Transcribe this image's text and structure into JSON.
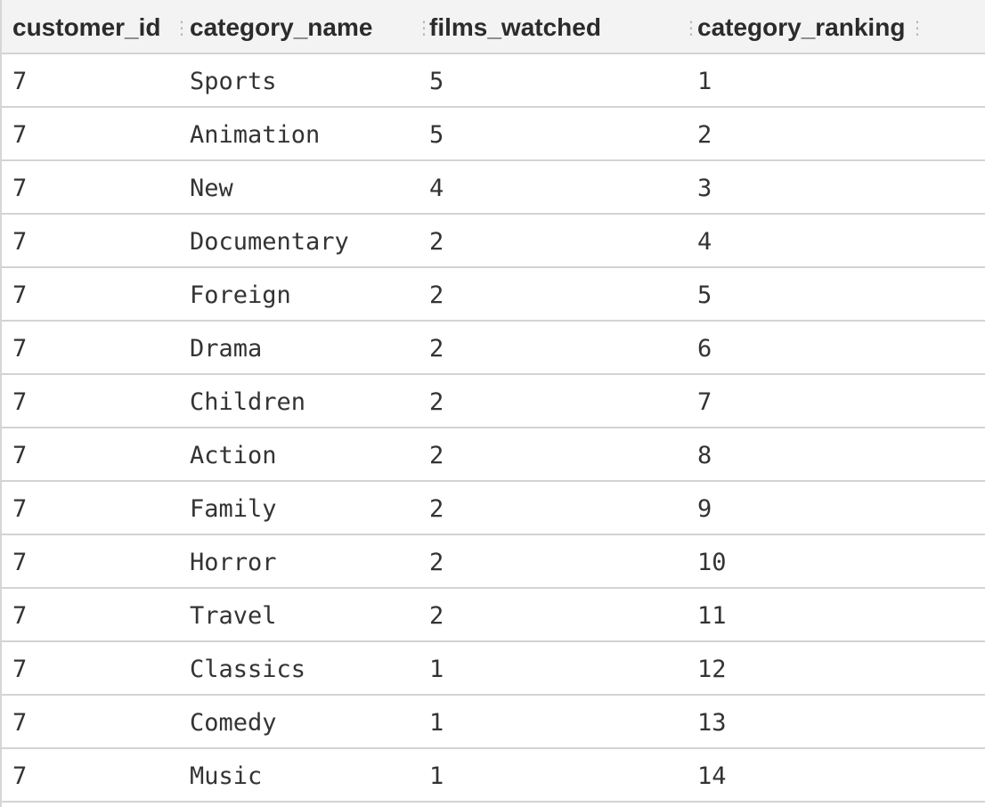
{
  "table": {
    "columns": [
      {
        "label": "customer_id"
      },
      {
        "label": "category_name"
      },
      {
        "label": "films_watched"
      },
      {
        "label": "category_ranking"
      }
    ],
    "rows": [
      [
        "7",
        "Sports",
        "5",
        "1"
      ],
      [
        "7",
        "Animation",
        "5",
        "2"
      ],
      [
        "7",
        "New",
        "4",
        "3"
      ],
      [
        "7",
        "Documentary",
        "2",
        "4"
      ],
      [
        "7",
        "Foreign",
        "2",
        "5"
      ],
      [
        "7",
        "Drama",
        "2",
        "6"
      ],
      [
        "7",
        "Children",
        "2",
        "7"
      ],
      [
        "7",
        "Action",
        "2",
        "8"
      ],
      [
        "7",
        "Family",
        "2",
        "9"
      ],
      [
        "7",
        "Horror",
        "2",
        "10"
      ],
      [
        "7",
        "Travel",
        "2",
        "11"
      ],
      [
        "7",
        "Classics",
        "1",
        "12"
      ],
      [
        "7",
        "Comedy",
        "1",
        "13"
      ],
      [
        "7",
        "Music",
        "1",
        "14"
      ]
    ]
  }
}
